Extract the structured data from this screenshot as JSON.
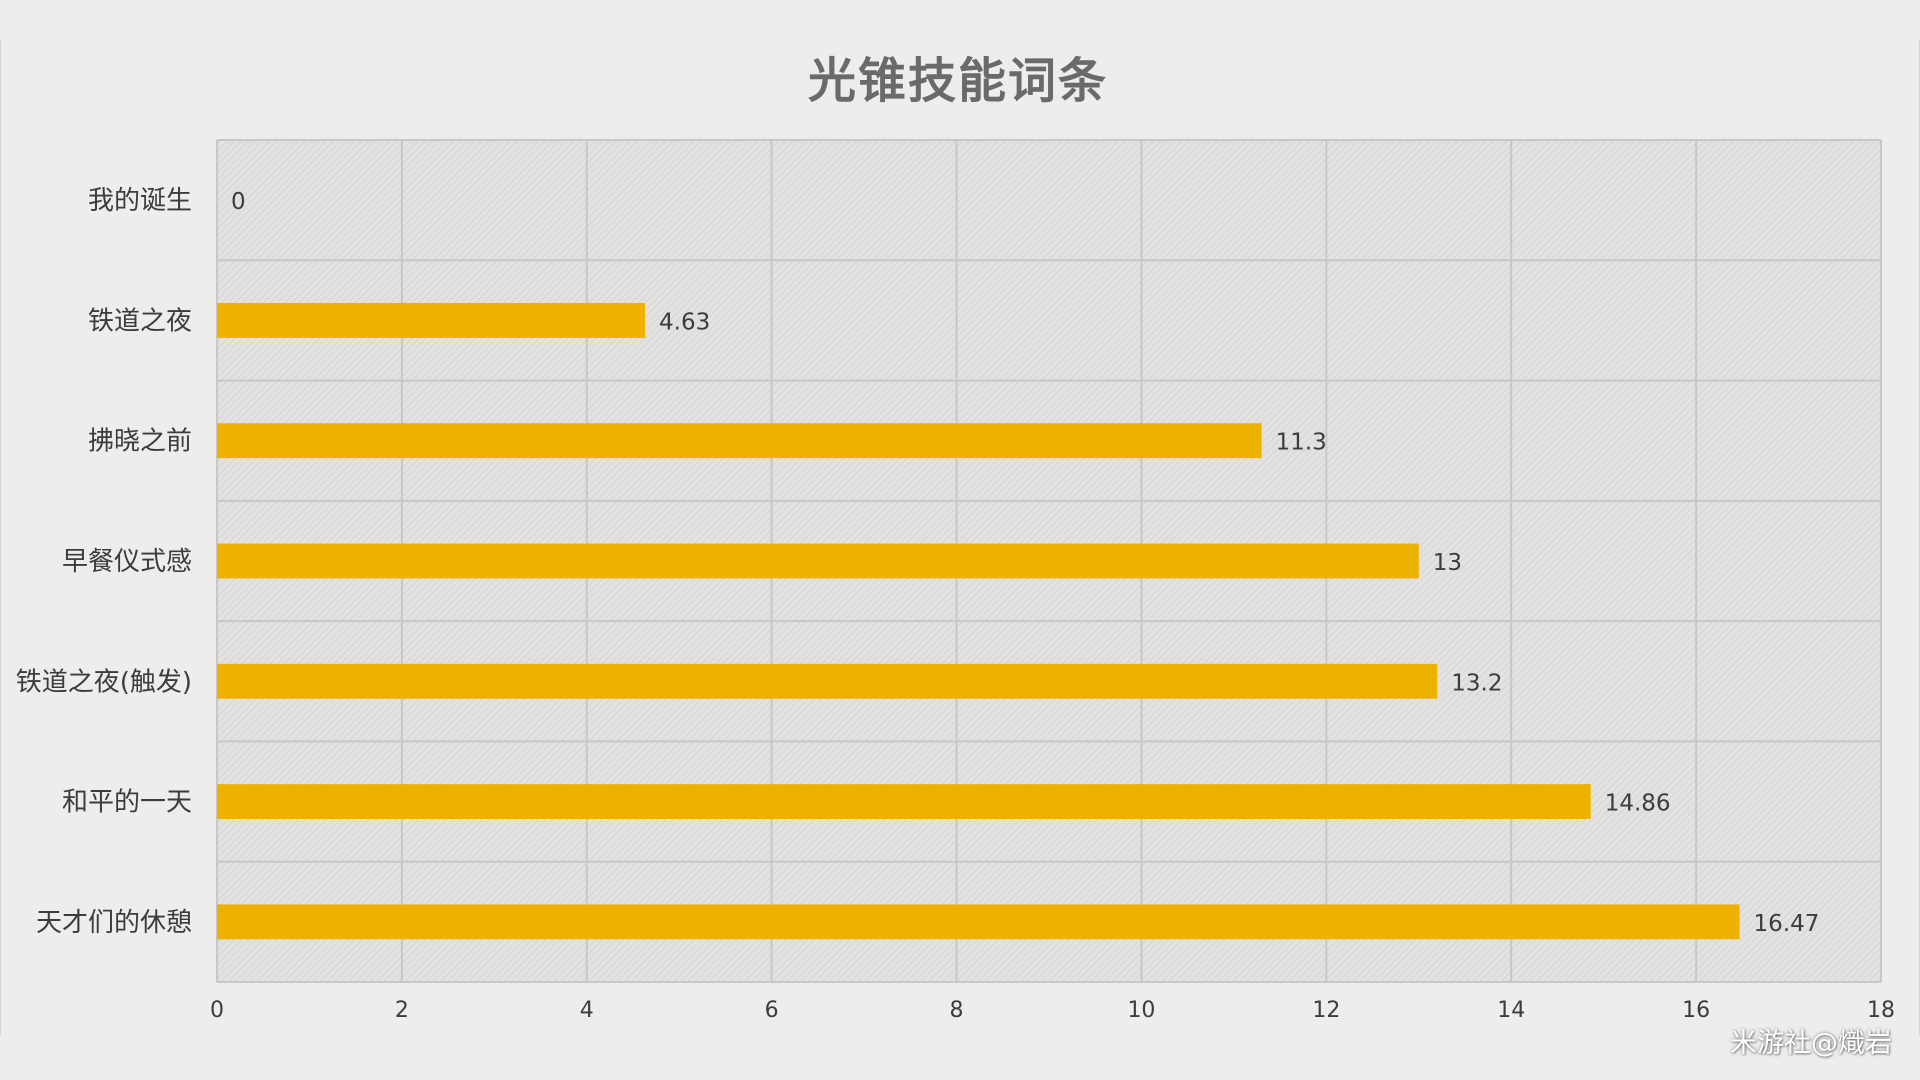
{
  "chart_data": {
    "type": "bar",
    "orientation": "horizontal",
    "title": "光锥技能词条",
    "categories": [
      "我的诞生",
      "铁道之夜",
      "拂晓之前",
      "早餐仪式感",
      "铁道之夜(触发)",
      "和平的一天",
      "天才们的休憩"
    ],
    "values": [
      0,
      4.63,
      11.3,
      13,
      13.2,
      14.86,
      16.47
    ],
    "data_labels": [
      "0",
      "4.63",
      "11.3",
      "13",
      "13.2",
      "14.86",
      "16.47"
    ],
    "xlim": [
      0,
      18
    ],
    "x_ticks": [
      "0",
      "2",
      "4",
      "6",
      "8",
      "10",
      "12",
      "14",
      "16",
      "18"
    ],
    "xlabel": "",
    "ylabel": "",
    "grid": true,
    "legend": "none",
    "colors": {
      "bar": "#edb100",
      "background": "#eeedeb",
      "plot_background": "#e2e1df",
      "grid": "#c8c7c5"
    }
  },
  "watermark": "米游社@熾岩"
}
